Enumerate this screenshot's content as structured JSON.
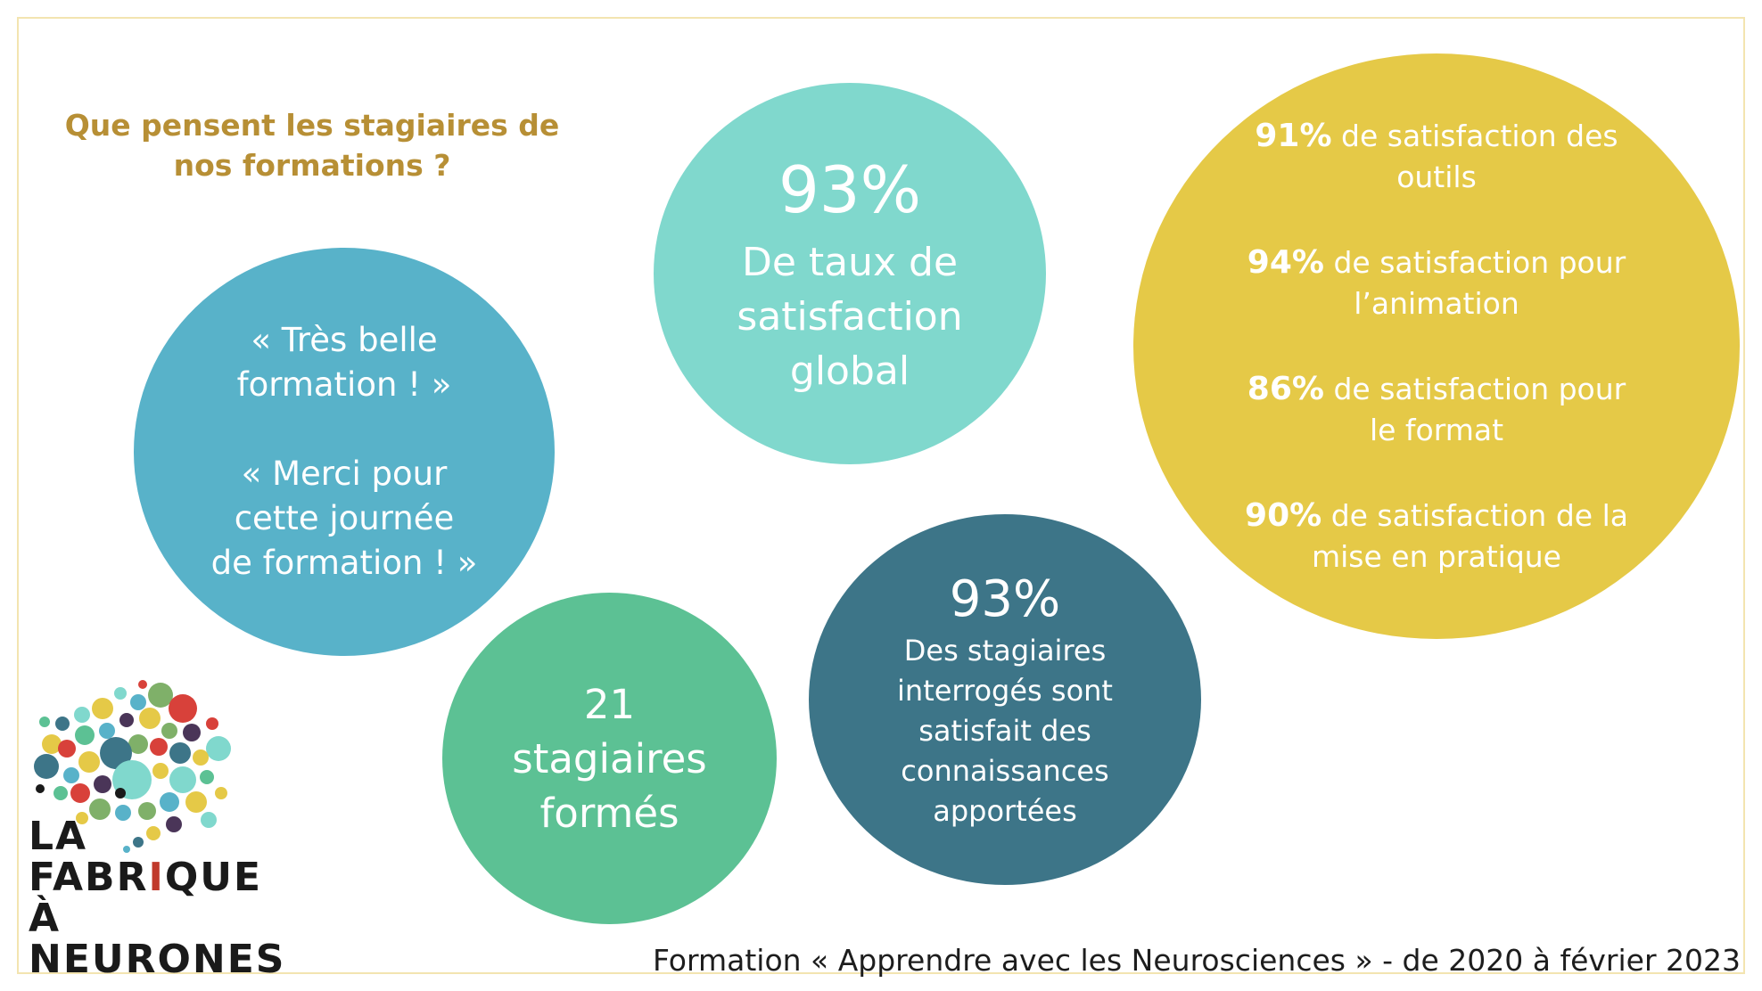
{
  "heading": {
    "line1": "Que pensent les stagiaires de",
    "line2": "nos formations ?"
  },
  "quotes": {
    "quote1_line1": "« Très belle",
    "quote1_line2": "formation ! »",
    "quote2_line1": "« Merci pour",
    "quote2_line2": "cette journée",
    "quote2_line3": "de formation ! »"
  },
  "global_satisfaction": {
    "value": "93%",
    "line1": "De taux de",
    "line2": "satisfaction",
    "line3": "global"
  },
  "trainees": {
    "line1": "21",
    "line2": "stagiaires",
    "line3": "formés"
  },
  "knowledge": {
    "value": "93%",
    "line1": "Des stagiaires",
    "line2": "interrogés sont",
    "line3": "satisfait des",
    "line4": "connaissances",
    "line5": "apportées"
  },
  "details": [
    {
      "value": "91%",
      "text_line1": "de satisfaction des",
      "text_line2": "outils"
    },
    {
      "value": "94%",
      "text_line1": "de satisfaction pour",
      "text_line2": "l’animation"
    },
    {
      "value": "86%",
      "text_line1": "de satisfaction pour",
      "text_line2": "le format"
    },
    {
      "value": "90%",
      "text_line1": "de satisfaction de la",
      "text_line2": "mise en pratique"
    }
  ],
  "footer": {
    "text": "Formation « Apprendre avec les Neurosciences » -  de 2020 à février 2023"
  },
  "logo": {
    "line1": "LA",
    "line2_part1": "FABR",
    "line2_red": "I",
    "line2_part2": "QUE",
    "line3": "À NEURONES"
  },
  "colors": {
    "heading": "#b78f35",
    "quotes_bubble": "#58b2c9",
    "global_bubble": "#80d8cd",
    "trainees_bubble": "#5cc194",
    "knowledge_bubble": "#3d7588",
    "details_bubble": "#e5c947",
    "border": "#f3e4b0"
  }
}
